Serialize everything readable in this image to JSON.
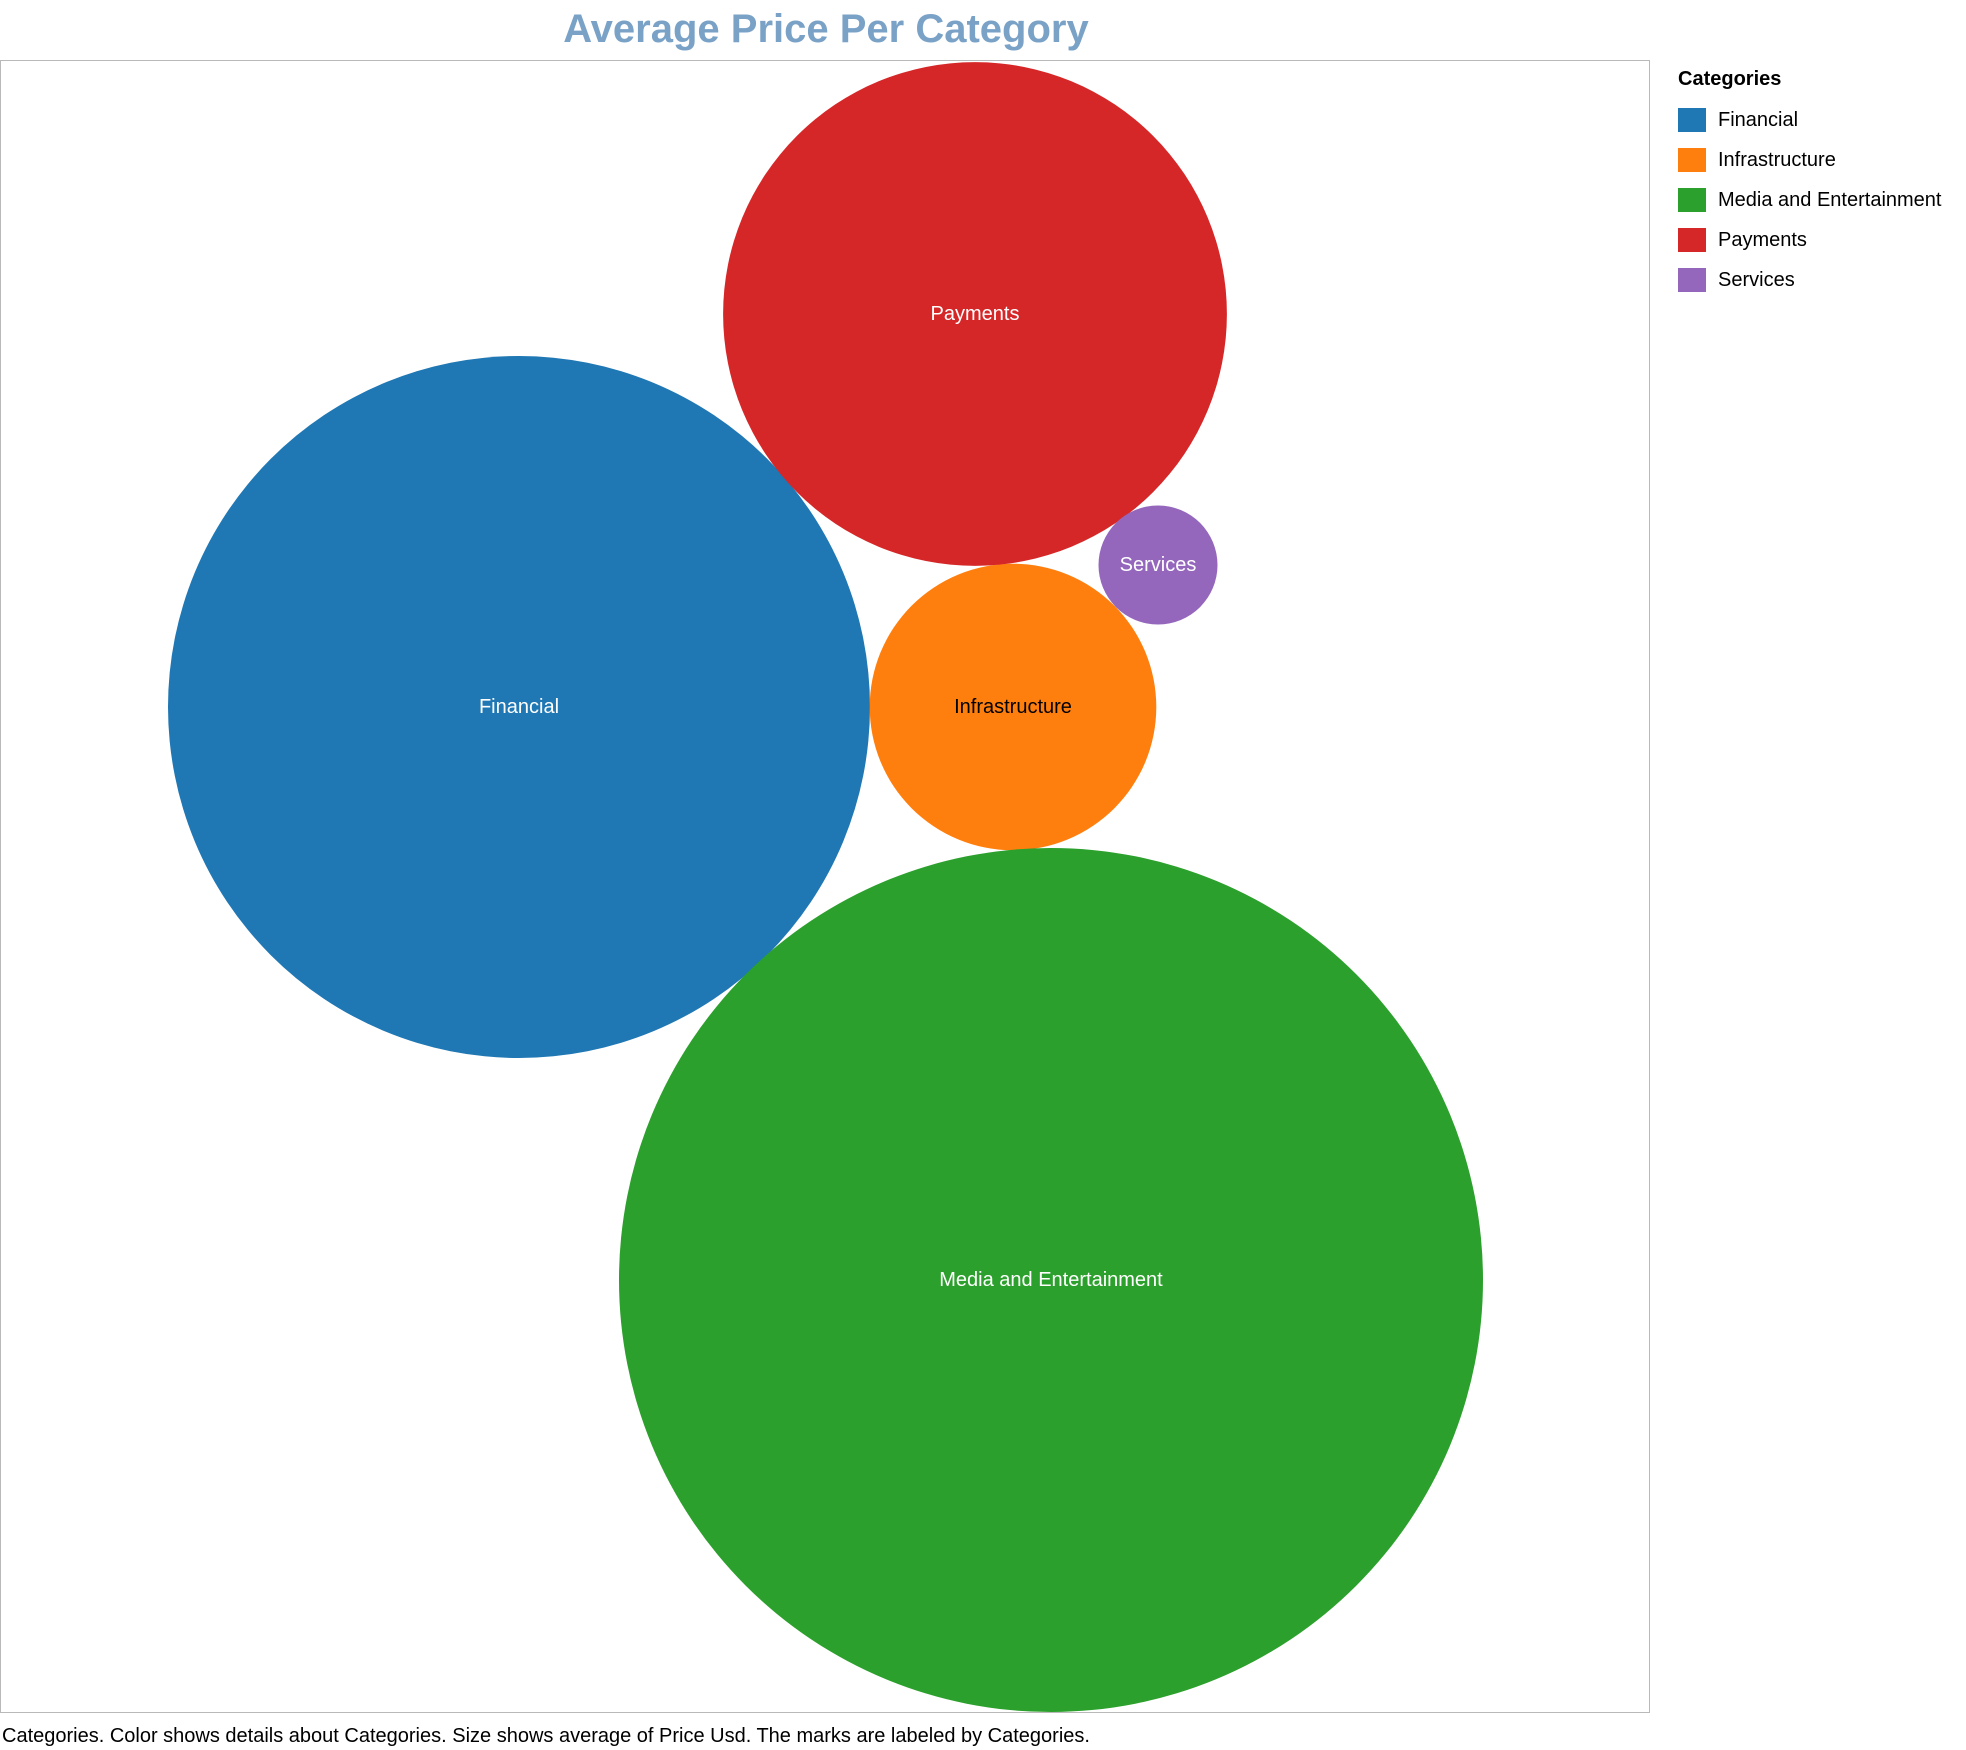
{
  "chart_data": {
    "type": "bubble",
    "title": "Average Price Per Category",
    "caption": "Categories.  Color shows details about Categories.  Size shows average of Price Usd.  The marks are labeled by Categories.",
    "size_measure": "average of Price Usd",
    "legend": {
      "title": "Categories",
      "placement": "right"
    },
    "series": [
      {
        "name": "Financial",
        "label": "Financial",
        "color": "#1f77b4",
        "label_color": "#ffffff",
        "relative_size": 0.66
      },
      {
        "name": "Infrastructure",
        "label": "Infrastructure",
        "color": "#ff7f0e",
        "label_color": "#000000",
        "relative_size": 0.11
      },
      {
        "name": "Media and Entertainment",
        "label": "Media and Entertainment",
        "color": "#2ca02c",
        "label_color": "#ffffff",
        "relative_size": 1.0
      },
      {
        "name": "Payments",
        "label": "Payments",
        "color": "#d62728",
        "label_color": "#ffffff",
        "relative_size": 0.34
      },
      {
        "name": "Services",
        "label": "Services",
        "color": "#9467bd",
        "label_color": "#ffffff",
        "relative_size": 0.019
      }
    ]
  }
}
